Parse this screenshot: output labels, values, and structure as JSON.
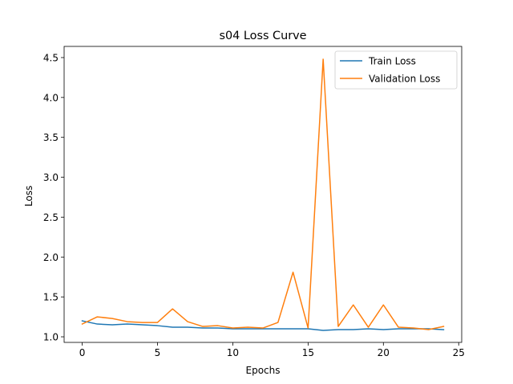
{
  "chart_data": {
    "type": "line",
    "title": "s04 Loss Curve",
    "xlabel": "Epochs",
    "ylabel": "Loss",
    "xlim": [
      -1.2,
      25.2
    ],
    "ylim": [
      0.93,
      4.64
    ],
    "xticks": [
      0,
      5,
      10,
      15,
      20,
      25
    ],
    "yticks": [
      1.0,
      1.5,
      2.0,
      2.5,
      3.0,
      3.5,
      4.0,
      4.5
    ],
    "xtick_labels": [
      "0",
      "5",
      "10",
      "15",
      "20",
      "25"
    ],
    "ytick_labels": [
      "1.0",
      "1.5",
      "2.0",
      "2.5",
      "3.0",
      "3.5",
      "4.0",
      "4.5"
    ],
    "grid": false,
    "legend_position": "top-right",
    "x": [
      0,
      1,
      2,
      3,
      4,
      5,
      6,
      7,
      8,
      9,
      10,
      11,
      12,
      13,
      14,
      15,
      16,
      17,
      18,
      19,
      20,
      21,
      22,
      23,
      24
    ],
    "series": [
      {
        "name": "Train Loss",
        "color": "#1f77b4",
        "values": [
          1.2,
          1.16,
          1.15,
          1.16,
          1.15,
          1.14,
          1.12,
          1.12,
          1.11,
          1.11,
          1.1,
          1.1,
          1.1,
          1.1,
          1.1,
          1.1,
          1.08,
          1.09,
          1.09,
          1.1,
          1.09,
          1.1,
          1.1,
          1.1,
          1.09
        ]
      },
      {
        "name": "Validation Loss",
        "color": "#ff7f0e",
        "values": [
          1.16,
          1.25,
          1.23,
          1.19,
          1.18,
          1.18,
          1.35,
          1.19,
          1.13,
          1.14,
          1.11,
          1.12,
          1.11,
          1.18,
          1.81,
          1.11,
          4.48,
          1.13,
          1.4,
          1.12,
          1.4,
          1.12,
          1.11,
          1.09,
          1.13
        ]
      }
    ]
  }
}
